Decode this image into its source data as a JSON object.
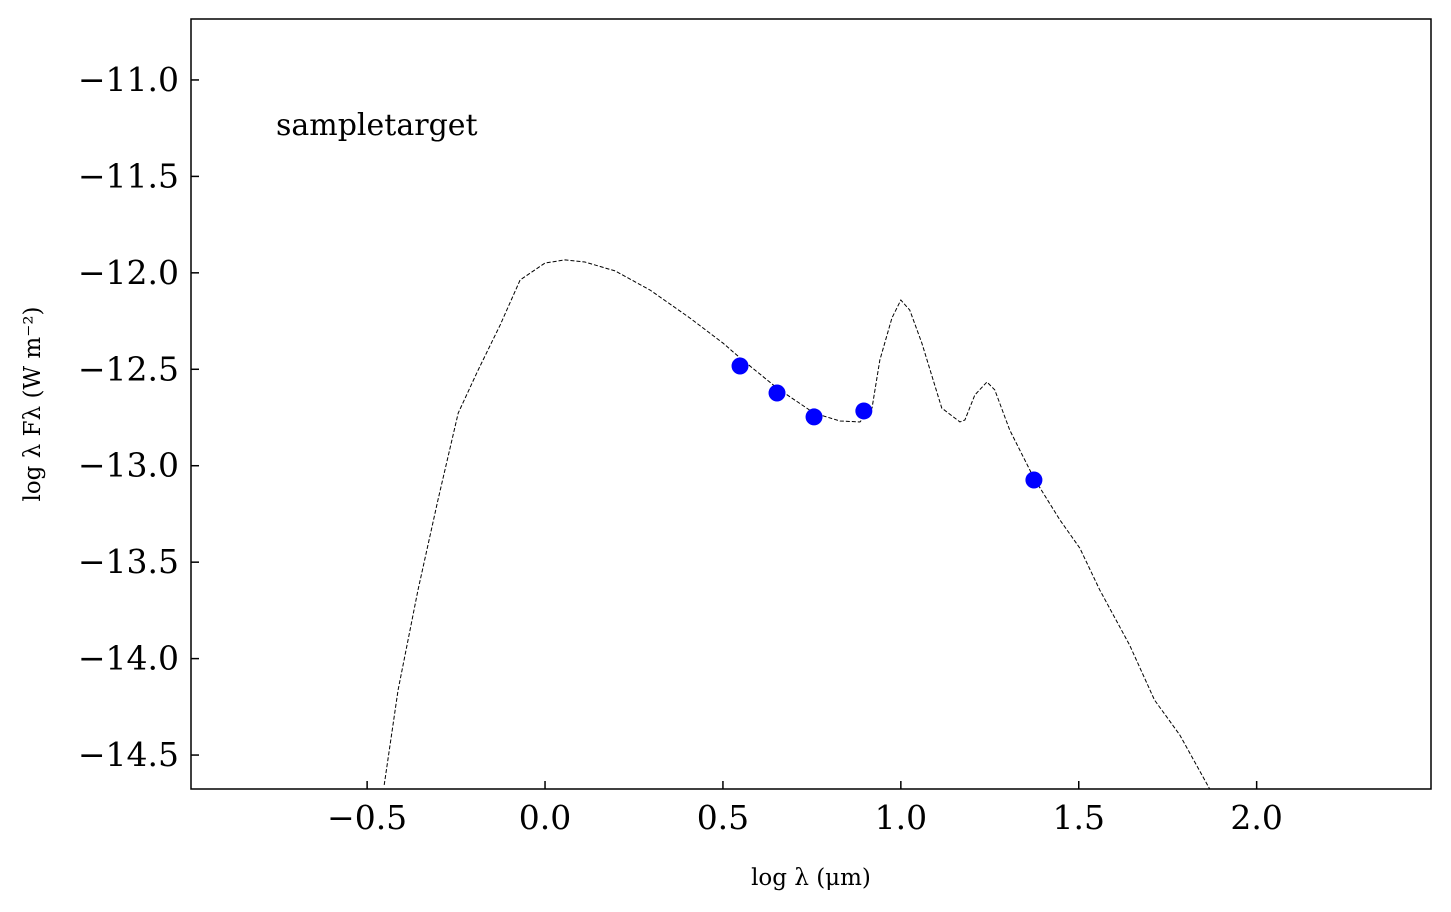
{
  "chart_data": {
    "type": "line",
    "annotation": "sampletarget",
    "xlabel": "log λ (μm)",
    "ylabel": "log λ Fλ (W m⁻²)",
    "xlim": [
      -0.995,
      2.49
    ],
    "ylim": [
      -14.676,
      -10.684
    ],
    "xticks": [
      {
        "value": -0.5,
        "label": "−0.5"
      },
      {
        "value": 0,
        "label": "0.0"
      },
      {
        "value": 0.5,
        "label": "0.5"
      },
      {
        "value": 1,
        "label": "1.0"
      },
      {
        "value": 1.5,
        "label": "1.5"
      },
      {
        "value": 2,
        "label": "2.0"
      }
    ],
    "yticks": [
      {
        "value": -11,
        "label": "−11.0"
      },
      {
        "value": -11.5,
        "label": "−11.5"
      },
      {
        "value": -12,
        "label": "−12.0"
      },
      {
        "value": -12.5,
        "label": "−12.5"
      },
      {
        "value": -13,
        "label": "−13.0"
      },
      {
        "value": -13.5,
        "label": "−13.5"
      },
      {
        "value": -14,
        "label": "−14.0"
      },
      {
        "value": -14.5,
        "label": "−14.5"
      }
    ],
    "series": [
      {
        "type": "line",
        "color": "#000000",
        "dashed": true,
        "x": [
          -0.452,
          -0.413,
          -0.357,
          -0.301,
          -0.244,
          -0.188,
          -0.126,
          -0.07,
          0.0,
          0.056,
          0.112,
          0.197,
          0.295,
          0.407,
          0.5,
          0.548,
          0.652,
          0.756,
          0.829,
          0.885,
          0.919,
          0.941,
          0.975,
          1.0,
          1.025,
          1.059,
          1.115,
          1.166,
          1.18,
          1.208,
          1.242,
          1.264,
          1.306,
          1.374,
          1.447,
          1.503,
          1.559,
          1.643,
          1.713,
          1.784,
          1.868
        ],
        "values": [
          -14.655,
          -14.163,
          -13.644,
          -13.178,
          -12.727,
          -12.504,
          -12.27,
          -12.037,
          -11.949,
          -11.933,
          -11.944,
          -11.99,
          -12.089,
          -12.234,
          -12.364,
          -12.441,
          -12.597,
          -12.727,
          -12.768,
          -12.773,
          -12.701,
          -12.452,
          -12.234,
          -12.141,
          -12.193,
          -12.364,
          -12.701,
          -12.773,
          -12.763,
          -12.633,
          -12.566,
          -12.607,
          -12.815,
          -13.064,
          -13.281,
          -13.427,
          -13.644,
          -13.93,
          -14.215,
          -14.396,
          -14.676
        ]
      },
      {
        "type": "scatter",
        "color": "#0000ff",
        "x": [
          0.548,
          0.652,
          0.756,
          0.896,
          1.374
        ],
        "values": [
          -12.483,
          -12.623,
          -12.747,
          -12.716,
          -13.074
        ]
      }
    ]
  }
}
